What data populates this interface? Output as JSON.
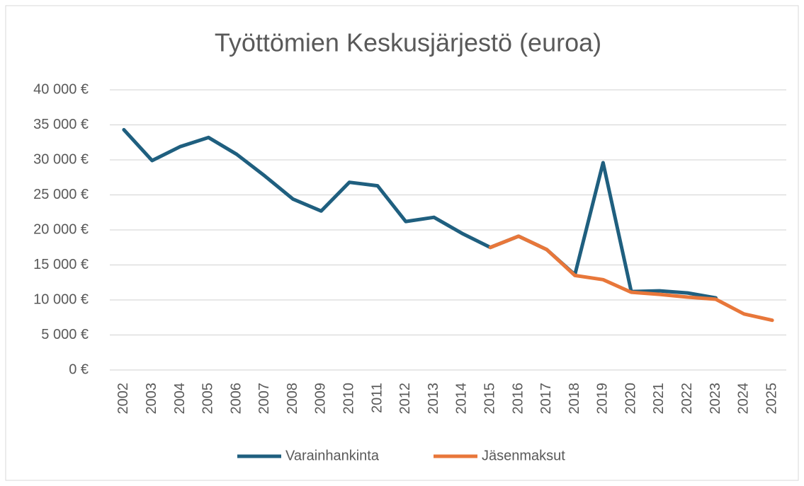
{
  "chart_data": {
    "type": "line",
    "title": "Työttömien Keskusjärjestö (euroa)",
    "categories": [
      "2002",
      "2003",
      "2004",
      "2005",
      "2006",
      "2007",
      "2008",
      "2009",
      "2010",
      "2011",
      "2012",
      "2013",
      "2014",
      "2015",
      "2016",
      "2017",
      "2018",
      "2019",
      "2020",
      "2021",
      "2022",
      "2023",
      "2024",
      "2025"
    ],
    "series": [
      {
        "name": "Varainhankinta",
        "color": "#1f5f7f",
        "values": [
          34300,
          29900,
          31900,
          33200,
          30800,
          27700,
          24400,
          22700,
          26800,
          26300,
          21200,
          21800,
          19500,
          17500,
          19100,
          17200,
          13600,
          29600,
          11200,
          11300,
          11000,
          10300,
          null,
          null
        ]
      },
      {
        "name": "Jäsenmaksut",
        "color": "#e8773a",
        "values": [
          null,
          null,
          null,
          null,
          null,
          null,
          null,
          null,
          null,
          null,
          null,
          null,
          null,
          17500,
          19100,
          17200,
          13500,
          12900,
          11100,
          10800,
          10400,
          10100,
          8000,
          7100
        ]
      }
    ],
    "ylim": [
      0,
      40000
    ],
    "yticks": [
      {
        "value": 0,
        "label": "0 €"
      },
      {
        "value": 5000,
        "label": "5 000 €"
      },
      {
        "value": 10000,
        "label": "10 000 €"
      },
      {
        "value": 15000,
        "label": "15 000 €"
      },
      {
        "value": 20000,
        "label": "20 000 €"
      },
      {
        "value": 25000,
        "label": "25 000 €"
      },
      {
        "value": 30000,
        "label": "30 000 €"
      },
      {
        "value": 35000,
        "label": "35 000 €"
      },
      {
        "value": 40000,
        "label": "40 000 €"
      }
    ],
    "grid": true,
    "legend": "bottom"
  }
}
